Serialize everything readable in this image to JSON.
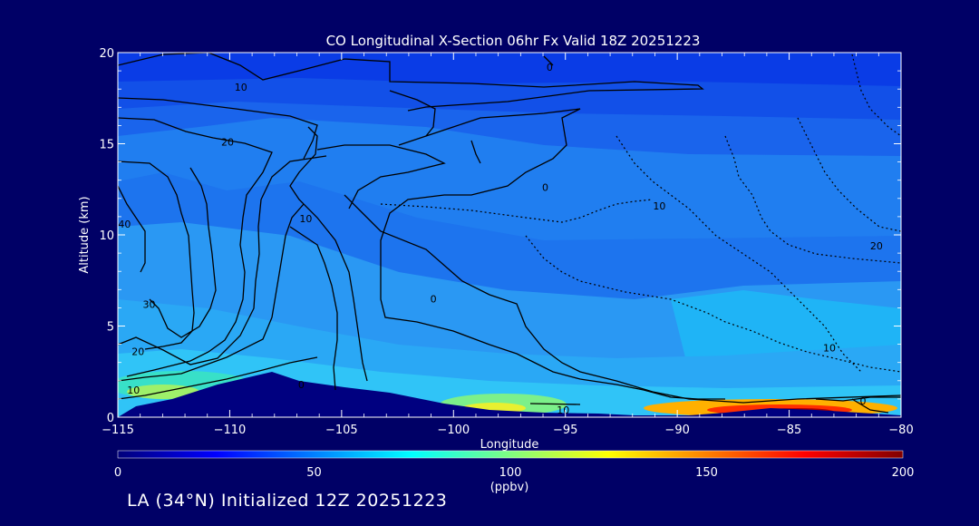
{
  "chart_data": {
    "type": "filled-contour",
    "title": "CO Longitudinal X-Section 06hr  Fx Valid 18Z 20251223",
    "xlabel": "Longitude",
    "ylabel": "Altitude (km)",
    "xlim": [
      -115,
      -80
    ],
    "ylim": [
      0,
      20
    ],
    "x_ticks": [
      -115,
      -110,
      -105,
      -100,
      -95,
      -90,
      -85,
      -80
    ],
    "x_tick_labels": [
      "−115",
      "−110",
      "−105",
      "−100",
      "−95",
      "−90",
      "−85",
      "−80"
    ],
    "y_ticks": [
      0,
      5,
      10,
      15,
      20
    ],
    "y_tick_labels": [
      "0",
      "5",
      "10",
      "15",
      "20"
    ],
    "contour_labels": [
      {
        "text": "10",
        "x": -109.5,
        "y": 18.1
      },
      {
        "text": "20",
        "x": -110.1,
        "y": 15.1
      },
      {
        "text": "0",
        "x": -95.7,
        "y": 19.2
      },
      {
        "text": "0",
        "x": -95.9,
        "y": 12.6
      },
      {
        "text": "10",
        "x": -106.6,
        "y": 10.9
      },
      {
        "text": "40",
        "x": -114.7,
        "y": 10.6
      },
      {
        "text": "10",
        "x": -90.8,
        "y": 11.6
      },
      {
        "text": "20",
        "x": -81.1,
        "y": 9.4
      },
      {
        "text": "0",
        "x": -100.9,
        "y": 6.5
      },
      {
        "text": "30",
        "x": -113.6,
        "y": 6.2
      },
      {
        "text": "20",
        "x": -114.1,
        "y": 3.6
      },
      {
        "text": "10",
        "x": -114.3,
        "y": 1.5
      },
      {
        "text": "10",
        "x": -83.2,
        "y": 3.8
      },
      {
        "text": "0",
        "x": -106.8,
        "y": 1.8
      },
      {
        "text": "10",
        "x": -95.1,
        "y": 0.4
      },
      {
        "text": "0",
        "x": -81.7,
        "y": 0.9
      }
    ],
    "colorbar": {
      "min": 0,
      "max": 200,
      "ticks": [
        0,
        50,
        100,
        150,
        200
      ],
      "tick_labels": [
        "0",
        "50",
        "100",
        "150",
        "200"
      ],
      "unit_label": "(ppbv)",
      "colors": [
        "#00007a",
        "#0000ff",
        "#0080ff",
        "#00ffff",
        "#80ff80",
        "#ffff00",
        "#ff8000",
        "#ff0000",
        "#800000"
      ]
    },
    "grid": false
  },
  "footer": {
    "note": "LA (34°N) Initialized 12Z 20251223"
  },
  "colors": {
    "background": "#000066",
    "contour_line": "#000000",
    "terrain": "#000080"
  }
}
